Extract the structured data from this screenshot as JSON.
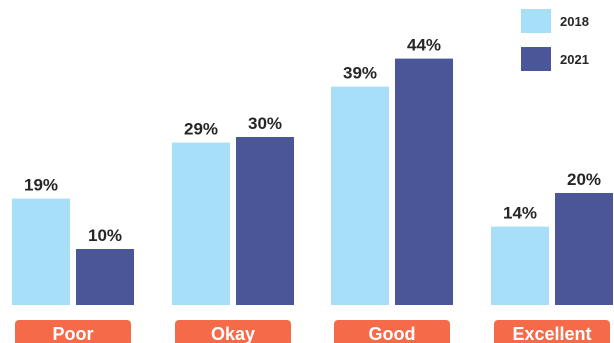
{
  "chart_data": {
    "type": "bar",
    "categories": [
      "Poor",
      "Okay",
      "Good",
      "Excellent"
    ],
    "series": [
      {
        "name": "2018",
        "values": [
          19,
          29,
          39,
          14
        ],
        "labels": [
          "19%",
          "29%",
          "39%",
          "14%"
        ],
        "color": "#a6dff7"
      },
      {
        "name": "2021",
        "values": [
          10,
          30,
          44,
          20
        ],
        "labels": [
          "10%",
          "30%",
          "44%",
          "20%"
        ],
        "color": "#4a5697"
      }
    ],
    "title": "",
    "xlabel": "",
    "ylabel": "",
    "ylim": [
      0,
      50
    ],
    "grid": false,
    "legend_position": "top-right",
    "category_label_color": "#f56b4a"
  }
}
